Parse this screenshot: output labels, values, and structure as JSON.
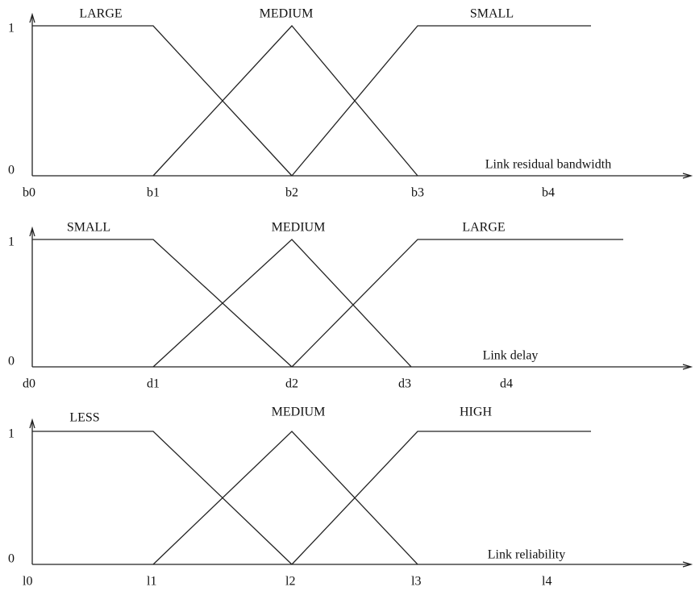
{
  "panels": [
    {
      "sets": [
        "LARGE",
        "MEDIUM",
        "SMALL"
      ],
      "y_labels": [
        "1",
        "0"
      ],
      "x_labels": [
        "b0",
        "b1",
        "b2",
        "b3",
        "b4"
      ],
      "axis_label": "Link residual bandwidth"
    },
    {
      "sets": [
        "SMALL",
        "MEDIUM",
        "LARGE"
      ],
      "y_labels": [
        "1",
        "0"
      ],
      "x_labels": [
        "d0",
        "d1",
        "d2",
        "d3",
        "d4"
      ],
      "axis_label": "Link delay"
    },
    {
      "sets": [
        "LESS",
        "MEDIUM",
        "HIGH"
      ],
      "y_labels": [
        "1",
        "0"
      ],
      "x_labels": [
        "l0",
        "l1",
        "l2",
        "l3",
        "l4"
      ],
      "axis_label": "Link reliability"
    }
  ]
}
